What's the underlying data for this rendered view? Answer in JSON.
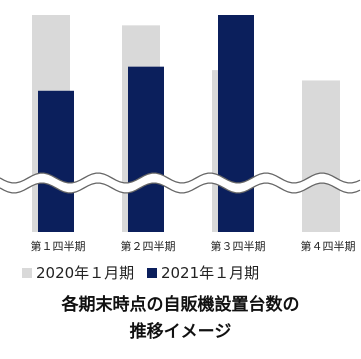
{
  "chart_data": {
    "type": "bar",
    "categories": [
      "第１四半期",
      "第２四半期",
      "第３四半期",
      "第４四半期"
    ],
    "series": [
      {
        "name": "2020年１月期",
        "color": "#d9d9d9",
        "values": [
          100,
          97,
          84,
          81
        ]
      },
      {
        "name": "2021年１月期",
        "color": "#0b1f5c",
        "values": [
          78,
          85,
          100,
          null
        ]
      }
    ],
    "title": "各期末時点の自販機設置台数の推移イメージ",
    "axis_break": true,
    "legend_position": "bottom"
  },
  "caption": {
    "line1": "各期末時点の自販機設置台数の",
    "line2": "推移イメージ"
  }
}
